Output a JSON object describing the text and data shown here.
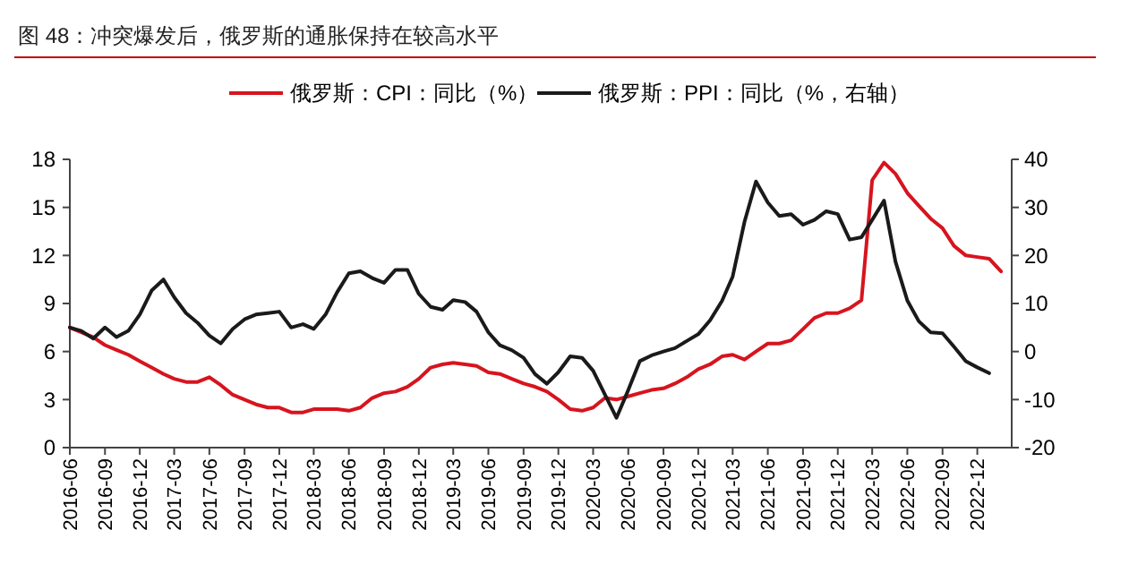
{
  "chart_data": {
    "type": "line",
    "title": "图 48：冲突爆发后，俄罗斯的通胀保持在较高水平",
    "x": [
      "2016-06",
      "2016-07",
      "2016-08",
      "2016-09",
      "2016-10",
      "2016-11",
      "2016-12",
      "2017-01",
      "2017-02",
      "2017-03",
      "2017-04",
      "2017-05",
      "2017-06",
      "2017-07",
      "2017-08",
      "2017-09",
      "2017-10",
      "2017-11",
      "2017-12",
      "2018-01",
      "2018-02",
      "2018-03",
      "2018-04",
      "2018-05",
      "2018-06",
      "2018-07",
      "2018-08",
      "2018-09",
      "2018-10",
      "2018-11",
      "2018-12",
      "2019-01",
      "2019-02",
      "2019-03",
      "2019-04",
      "2019-05",
      "2019-06",
      "2019-07",
      "2019-08",
      "2019-09",
      "2019-10",
      "2019-11",
      "2019-12",
      "2020-01",
      "2020-02",
      "2020-03",
      "2020-04",
      "2020-05",
      "2020-06",
      "2020-07",
      "2020-08",
      "2020-09",
      "2020-10",
      "2020-11",
      "2020-12",
      "2021-01",
      "2021-02",
      "2021-03",
      "2021-04",
      "2021-05",
      "2021-06",
      "2021-07",
      "2021-08",
      "2021-09",
      "2021-10",
      "2021-11",
      "2021-12",
      "2022-01",
      "2022-02",
      "2022-03",
      "2022-04",
      "2022-05",
      "2022-06",
      "2022-07",
      "2022-08",
      "2022-09",
      "2022-10",
      "2022-11",
      "2022-12",
      "2023-01",
      "2023-02"
    ],
    "series": [
      {
        "name": "俄罗斯：CPI：同比（%）",
        "color": "#d7141e",
        "values": [
          7.5,
          7.2,
          6.9,
          6.4,
          6.1,
          5.8,
          5.4,
          5.0,
          4.6,
          4.3,
          4.1,
          4.1,
          4.4,
          3.9,
          3.3,
          3.0,
          2.7,
          2.5,
          2.5,
          2.2,
          2.2,
          2.4,
          2.4,
          2.4,
          2.3,
          2.5,
          3.1,
          3.4,
          3.5,
          3.8,
          4.3,
          5.0,
          5.2,
          5.3,
          5.2,
          5.1,
          4.7,
          4.6,
          4.3,
          4.0,
          3.8,
          3.5,
          3.0,
          2.4,
          2.3,
          2.5,
          3.1,
          3.0,
          3.2,
          3.4,
          3.6,
          3.7,
          4.0,
          4.4,
          4.9,
          5.2,
          5.7,
          5.8,
          5.5,
          6.0,
          6.5,
          6.5,
          6.7,
          7.4,
          8.1,
          8.4,
          8.4,
          8.7,
          9.2,
          16.7,
          17.8,
          17.1,
          15.9,
          15.1,
          14.3,
          13.7,
          12.6,
          12.0,
          11.9,
          11.8,
          11.0
        ]
      },
      {
        "name": "俄罗斯：PPI：同比（%，右轴）",
        "color": "#1a1a1a",
        "axis": "y2",
        "values": [
          5,
          4.3,
          2.7,
          5,
          3,
          4.3,
          7.7,
          12.7,
          15,
          11.3,
          8,
          6,
          3.3,
          1.7,
          4.7,
          6.7,
          7.7,
          8,
          8.3,
          5,
          5.7,
          4.7,
          7.7,
          12.3,
          16.3,
          16.7,
          15.3,
          14.3,
          17,
          17,
          12,
          9.3,
          8.7,
          10.7,
          10.3,
          8.3,
          4,
          1.3,
          0.3,
          -1.3,
          -4.7,
          -6.7,
          -4.3,
          -1,
          -1.3,
          -4,
          -9,
          -13.8,
          -8,
          -2,
          -0.8,
          0,
          0.7,
          2.2,
          3.6,
          6.5,
          10.5,
          15.6,
          27,
          35.4,
          31,
          28.2,
          28.6,
          26.4,
          27.4,
          29.2,
          28.6,
          23.3,
          23.8,
          27.4,
          31.4,
          18.7,
          10.6,
          6.3,
          4,
          3.8,
          1,
          -2,
          -3.3,
          -4.5,
          null
        ]
      }
    ],
    "xlim": [
      "2016-06",
      "2023-03"
    ],
    "xticks": [
      "2016-06",
      "2016-09",
      "2016-12",
      "2017-03",
      "2017-06",
      "2017-09",
      "2017-12",
      "2018-03",
      "2018-06",
      "2018-09",
      "2018-12",
      "2019-03",
      "2019-06",
      "2019-09",
      "2019-12",
      "2020-03",
      "2020-06",
      "2020-09",
      "2020-12",
      "2021-03",
      "2021-06",
      "2021-09",
      "2021-12",
      "2022-03",
      "2022-06",
      "2022-09",
      "2022-12"
    ],
    "ylim": [
      0,
      18
    ],
    "yticks": [
      0,
      3,
      6,
      9,
      12,
      15,
      18
    ],
    "y2lim": [
      -20,
      40
    ],
    "y2ticks": [
      -20,
      -10,
      0,
      10,
      20,
      30,
      40
    ],
    "legend": "top",
    "grid": false,
    "marker": "none",
    "line_style": "solid"
  }
}
